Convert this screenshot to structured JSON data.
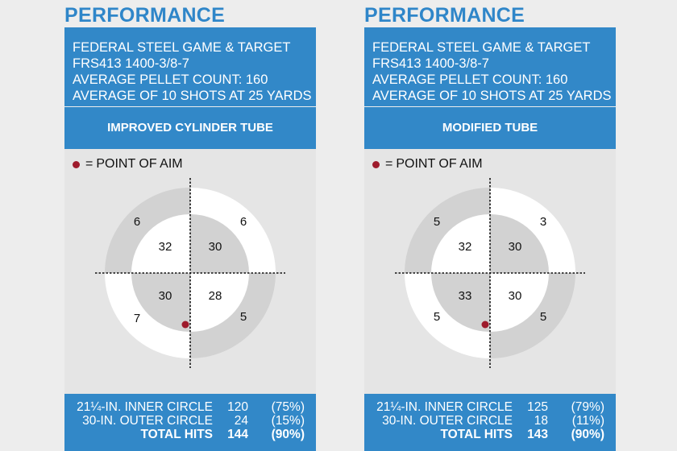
{
  "panels": [
    {
      "title": "PERFORMANCE",
      "header_lines": [
        "FEDERAL STEEL GAME & TARGET",
        "FRS413 1400-3/8-7",
        "AVERAGE PELLET COUNT: 160",
        "AVERAGE OF 10 SHOTS AT 25 YARDS"
      ],
      "tube": "IMPROVED CYLINDER TUBE",
      "aim_legend": "POINT OF AIM",
      "aim_equals": "=",
      "inner": {
        "top_left": "32",
        "top_right": "30",
        "bottom_left": "30",
        "bottom_right": "28"
      },
      "outer": {
        "top_left": "6",
        "top_right": "6",
        "bottom_left": "7",
        "bottom_right": "5"
      },
      "stats": [
        {
          "label": "21¼-IN. INNER CIRCLE",
          "count": "120",
          "percent": "(75%)"
        },
        {
          "label": "30-IN. OUTER CIRCLE",
          "count": "24",
          "percent": "(15%)"
        },
        {
          "label": "TOTAL HITS",
          "count": "144",
          "percent": "(90%)"
        }
      ]
    },
    {
      "title": "PERFORMANCE",
      "header_lines": [
        "FEDERAL STEEL GAME & TARGET",
        "FRS413 1400-3/8-7",
        "AVERAGE PELLET COUNT: 160",
        "AVERAGE OF 10 SHOTS AT 25 YARDS"
      ],
      "tube": "MODIFIED TUBE",
      "aim_legend": "POINT OF AIM",
      "aim_equals": "=",
      "inner": {
        "top_left": "32",
        "top_right": "30",
        "bottom_left": "33",
        "bottom_right": "30"
      },
      "outer": {
        "top_left": "5",
        "top_right": "3",
        "bottom_left": "5",
        "bottom_right": "5"
      },
      "stats": [
        {
          "label": "21¼-IN. INNER CIRCLE",
          "count": "125",
          "percent": "(79%)"
        },
        {
          "label": "30-IN. OUTER CIRCLE",
          "count": "18",
          "percent": "(11%)"
        },
        {
          "label": "TOTAL HITS",
          "count": "143",
          "percent": "(90%)"
        }
      ]
    }
  ],
  "colors": {
    "brand_blue": "#3288c8",
    "title_blue": "#2f86c9",
    "ring_gray": "#d2d2d2",
    "ring_white": "#ffffff",
    "aim_red": "#9e1b2c"
  }
}
